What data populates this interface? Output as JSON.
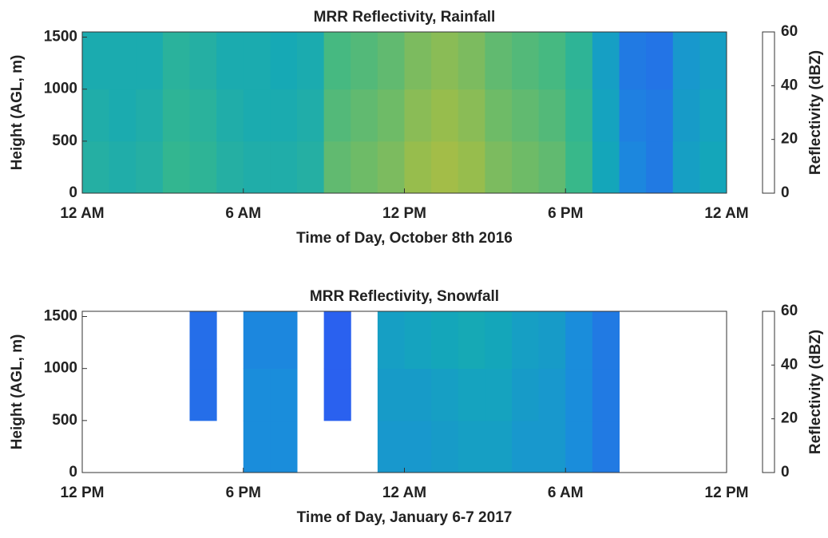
{
  "chart_data": [
    {
      "type": "heatmap",
      "title": "MRR Reflectivity, Rainfall",
      "xlabel": "Time of Day, October 8th 2016",
      "ylabel": "Height (AGL, m)",
      "xlim": [
        0,
        24
      ],
      "xticks": [
        {
          "value": 0,
          "label": "12 AM"
        },
        {
          "value": 6,
          "label": "6 AM"
        },
        {
          "value": 12,
          "label": "12 PM"
        },
        {
          "value": 18,
          "label": "6 PM"
        },
        {
          "value": 24,
          "label": "12 AM"
        }
      ],
      "ylim": [
        0,
        1550
      ],
      "yticks": [
        0,
        500,
        1000,
        1500
      ],
      "x_edges": [
        0,
        1,
        2,
        3,
        4,
        5,
        6,
        7,
        8,
        9,
        10,
        11,
        12,
        13,
        14,
        15,
        16,
        17,
        18,
        19,
        20,
        21,
        22,
        23,
        24
      ],
      "y_edges": [
        0,
        500,
        1000,
        1550
      ],
      "z": [
        [
          26,
          25,
          26,
          29,
          28,
          26,
          25,
          25,
          26,
          33,
          34,
          35,
          37,
          38,
          37,
          35,
          34,
          33,
          30,
          22,
          14,
          12,
          20,
          22
        ],
        [
          25,
          24,
          25,
          28,
          27,
          25,
          24,
          24,
          25,
          32,
          33,
          34,
          36,
          37,
          36,
          34,
          33,
          32,
          29,
          21,
          13,
          12,
          19,
          21
        ],
        [
          24,
          24,
          24,
          27,
          26,
          24,
          24,
          23,
          24,
          31,
          32,
          33,
          35,
          36,
          35,
          33,
          32,
          31,
          28,
          20,
          12,
          11,
          18,
          20
        ]
      ],
      "clim": [
        0,
        60
      ],
      "cticks": [
        0,
        20,
        40,
        60
      ],
      "clabel": "Reflectivity (dBZ)",
      "colormap": [
        "#3e26a8",
        "#2b5ef0",
        "#1a8ddb",
        "#14a8b8",
        "#38b88a",
        "#9ebd49",
        "#e2b734",
        "#fdd83a",
        "#f9fb0e"
      ]
    },
    {
      "type": "heatmap",
      "title": "MRR Reflectivity, Snowfall",
      "xlabel": "Time of Day, January 6-7 2017",
      "ylabel": "Height (AGL, m)",
      "xlim": [
        0,
        24
      ],
      "xticks": [
        {
          "value": 0,
          "label": "12 PM"
        },
        {
          "value": 6,
          "label": "6 PM"
        },
        {
          "value": 12,
          "label": "12 AM"
        },
        {
          "value": 18,
          "label": "6 AM"
        },
        {
          "value": 24,
          "label": "12 PM"
        }
      ],
      "ylim": [
        0,
        1550
      ],
      "yticks": [
        0,
        500,
        1000,
        1500
      ],
      "x_edges": [
        0,
        1,
        2,
        3,
        4,
        5,
        6,
        7,
        8,
        9,
        10,
        11,
        12,
        13,
        14,
        15,
        16,
        17,
        18,
        19,
        20,
        21,
        22,
        23,
        24
      ],
      "y_edges": [
        0,
        500,
        1000,
        1550
      ],
      "z": [
        [
          null,
          null,
          null,
          null,
          null,
          null,
          15,
          15,
          null,
          null,
          null,
          18,
          18,
          19,
          20,
          20,
          18,
          18,
          15,
          12,
          null,
          null,
          null,
          null
        ],
        [
          null,
          null,
          null,
          null,
          10,
          null,
          15,
          15,
          null,
          8,
          null,
          19,
          19,
          20,
          21,
          21,
          19,
          18,
          15,
          12,
          null,
          null,
          null,
          null
        ],
        [
          null,
          null,
          null,
          null,
          10,
          null,
          14,
          14,
          null,
          8,
          null,
          20,
          21,
          22,
          23,
          22,
          20,
          19,
          15,
          12,
          null,
          null,
          null,
          null
        ]
      ],
      "clim": [
        0,
        60
      ],
      "cticks": [
        0,
        20,
        40,
        60
      ],
      "clabel": "Reflectivity (dBZ)",
      "colormap": [
        "#3e26a8",
        "#2b5ef0",
        "#1a8ddb",
        "#14a8b8",
        "#38b88a",
        "#9ebd49",
        "#e2b734",
        "#fdd83a",
        "#f9fb0e"
      ]
    }
  ]
}
